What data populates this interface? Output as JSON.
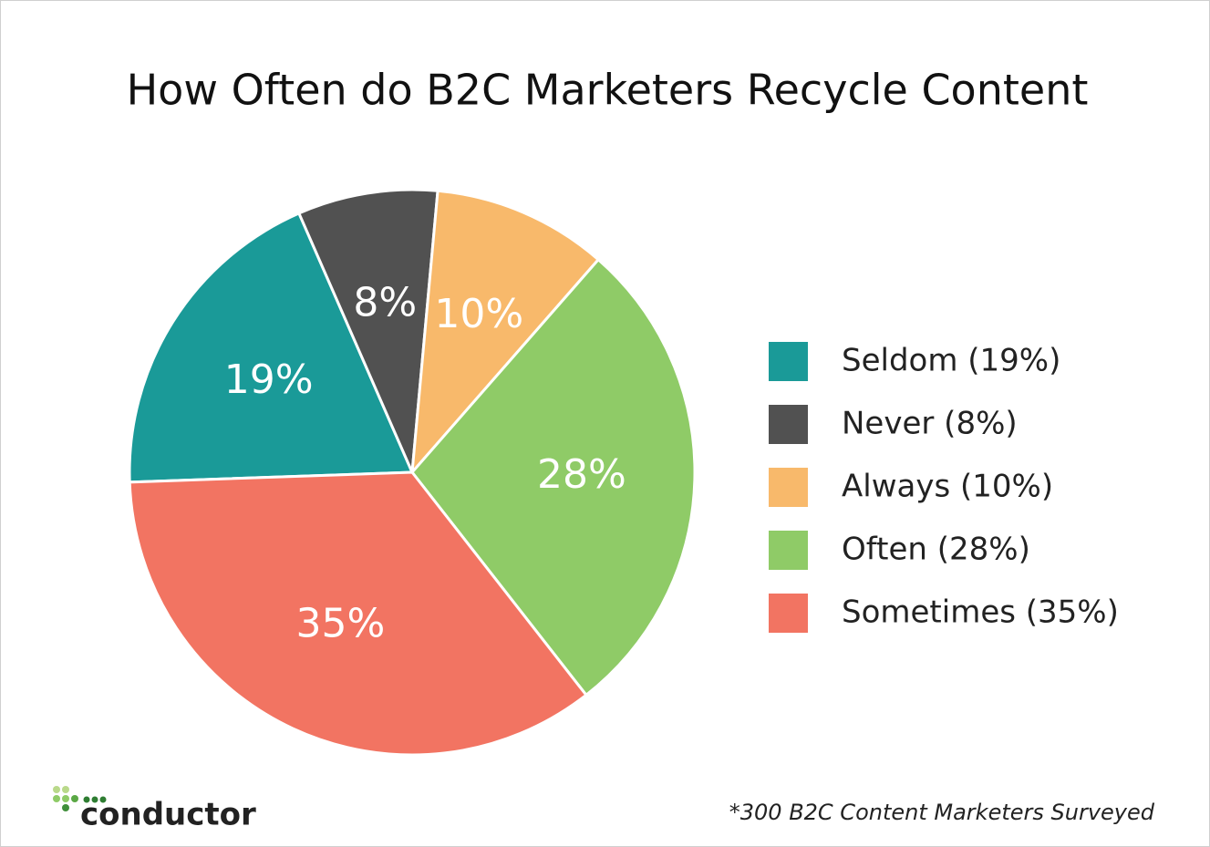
{
  "chart_data": {
    "type": "pie",
    "title": "How Often do B2C Marketers Recycle Content",
    "categories": [
      "Seldom (19%)",
      "Never (8%)",
      "Always (10%)",
      "Often (28%)",
      "Sometimes (35%)"
    ],
    "values": [
      19,
      8,
      10,
      28,
      35
    ],
    "value_labels": [
      "19%",
      "8%",
      "10%",
      "28%",
      "35%"
    ],
    "colors": [
      "#1a9a98",
      "#515151",
      "#f8b96b",
      "#8fcb67",
      "#f27462"
    ],
    "note": "*300 B2C Content Marketers Surveyed",
    "logo": "conductor"
  }
}
